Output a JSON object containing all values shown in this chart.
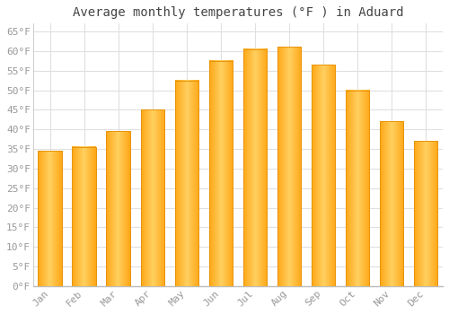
{
  "title": "Average monthly temperatures (°F ) in Aduard",
  "months": [
    "Jan",
    "Feb",
    "Mar",
    "Apr",
    "May",
    "Jun",
    "Jul",
    "Aug",
    "Sep",
    "Oct",
    "Nov",
    "Dec"
  ],
  "values": [
    34.5,
    35.5,
    39.5,
    45.0,
    52.5,
    57.5,
    60.5,
    61.0,
    56.5,
    50.0,
    42.0,
    37.0
  ],
  "bar_color_center": "#FFD966",
  "bar_color_edge": "#FFA500",
  "ylim": [
    0,
    67
  ],
  "yticks": [
    0,
    5,
    10,
    15,
    20,
    25,
    30,
    35,
    40,
    45,
    50,
    55,
    60,
    65
  ],
  "ytick_labels": [
    "0°F",
    "5°F",
    "10°F",
    "15°F",
    "20°F",
    "25°F",
    "30°F",
    "35°F",
    "40°F",
    "45°F",
    "50°F",
    "55°F",
    "60°F",
    "65°F"
  ],
  "background_color": "#ffffff",
  "plot_bg_color": "#f5f5f5",
  "grid_color": "#e0e0e0",
  "title_fontsize": 10,
  "tick_fontsize": 8,
  "tick_color": "#999999",
  "title_color": "#444444",
  "font_family": "monospace",
  "bar_width": 0.7
}
